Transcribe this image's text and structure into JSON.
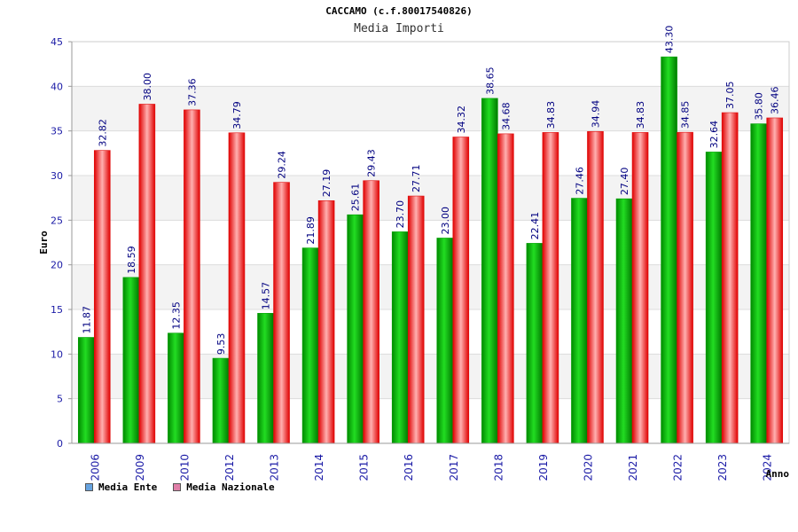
{
  "chart_data": {
    "type": "bar",
    "title": "CACCAMO (c.f.80017540826)",
    "subtitle": "Media Importi",
    "ylabel": "Euro",
    "xlabel": "Anno",
    "ylim": [
      0,
      45
    ],
    "yticks": [
      0,
      5,
      10,
      15,
      20,
      25,
      30,
      35,
      40,
      45
    ],
    "grid": true,
    "legend_position": "bottom-left",
    "categories": [
      "2006",
      "2009",
      "2010",
      "2012",
      "2013",
      "2014",
      "2015",
      "2016",
      "2017",
      "2018",
      "2019",
      "2020",
      "2021",
      "2022",
      "2023",
      "2024"
    ],
    "series": [
      {
        "name": "Media Ente",
        "color": "#00b000",
        "legend_color": "#66a3e0",
        "values": [
          11.87,
          18.59,
          12.35,
          9.53,
          14.57,
          21.89,
          25.61,
          23.7,
          23.0,
          38.65,
          22.41,
          27.46,
          27.4,
          43.3,
          32.64,
          35.8
        ],
        "labels": [
          "11.87",
          "18.59",
          "12.35",
          "9.53",
          "14.57",
          "21.89",
          "25.61",
          "23.70",
          "23.00",
          "38.65",
          "22.41",
          "27.46",
          "27.40",
          "43.30",
          "32.64",
          "35.80"
        ]
      },
      {
        "name": "Media Nazionale",
        "color": "#ff2020",
        "legend_color": "#e07fa8",
        "values": [
          32.82,
          38.0,
          37.36,
          34.79,
          29.24,
          27.19,
          29.43,
          27.71,
          34.32,
          34.68,
          34.83,
          34.94,
          34.83,
          34.85,
          37.05,
          36.46
        ],
        "labels": [
          "32.82",
          "38.00",
          "37.36",
          "34.79",
          "29.24",
          "27.19",
          "29.43",
          "27.71",
          "34.32",
          "34.68",
          "34.83",
          "34.94",
          "34.83",
          "34.85",
          "37.05",
          "36.46"
        ]
      }
    ]
  }
}
